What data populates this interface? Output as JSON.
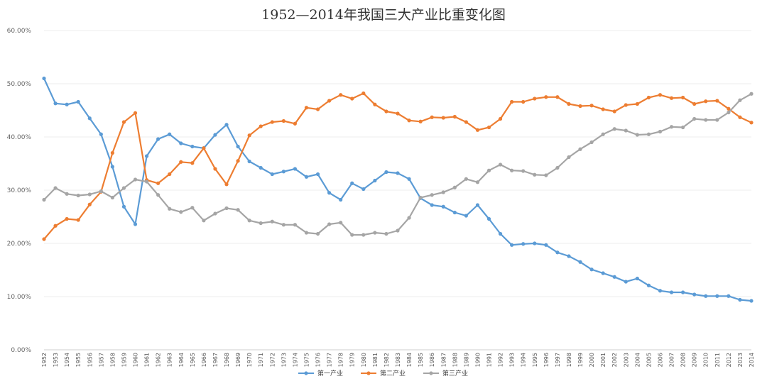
{
  "chart_data": {
    "type": "line",
    "title": "1952—2014年我国三大产业比重变化图",
    "ylim": [
      0,
      60
    ],
    "yticks": [
      "0.00%",
      "10.00%",
      "20.00%",
      "30.00%",
      "40.00%",
      "50.00%",
      "60.00%"
    ],
    "x": [
      "1952",
      "1953",
      "1954",
      "1955",
      "1956",
      "1957",
      "1958",
      "1959",
      "1960",
      "1961",
      "1962",
      "1963",
      "1964",
      "1965",
      "1966",
      "1967",
      "1968",
      "1969",
      "1970",
      "1971",
      "1972",
      "1973",
      "1974",
      "1975",
      "1976",
      "1977",
      "1978",
      "1979",
      "1980",
      "1981",
      "1982",
      "1983",
      "1984",
      "1985",
      "1986",
      "1987",
      "1988",
      "1989",
      "1990",
      "1991",
      "1992",
      "1993",
      "1994",
      "1995",
      "1996",
      "1997",
      "1998",
      "1999",
      "2000",
      "2001",
      "2002",
      "2003",
      "2004",
      "2005",
      "2006",
      "2007",
      "2008",
      "2009",
      "2010",
      "2011",
      "2012",
      "2013",
      "2014"
    ],
    "legend_position": "bottom",
    "grid": true,
    "series": [
      {
        "name": "第一产业",
        "color": "#5b9bd5",
        "values": [
          51.0,
          46.3,
          46.1,
          46.6,
          43.5,
          40.5,
          34.4,
          26.9,
          23.6,
          36.4,
          39.6,
          40.5,
          38.8,
          38.2,
          37.9,
          40.4,
          42.3,
          38.2,
          35.4,
          34.2,
          33.0,
          33.5,
          34.0,
          32.5,
          33.0,
          29.5,
          28.2,
          31.3,
          30.2,
          31.8,
          33.4,
          33.2,
          32.1,
          28.5,
          27.2,
          26.9,
          25.8,
          25.2,
          27.2,
          24.6,
          21.8,
          19.7,
          19.9,
          20.0,
          19.7,
          18.3,
          17.6,
          16.5,
          15.1,
          14.4,
          13.7,
          12.8,
          13.4,
          12.1,
          11.1,
          10.8,
          10.8,
          10.4,
          10.1,
          10.1,
          10.1,
          9.4,
          9.2
        ]
      },
      {
        "name": "第二产业",
        "color": "#ed7d31",
        "values": [
          20.8,
          23.3,
          24.6,
          24.4,
          27.3,
          29.7,
          37.0,
          42.8,
          44.5,
          31.9,
          31.3,
          33.0,
          35.3,
          35.1,
          37.9,
          34.0,
          31.1,
          35.5,
          40.3,
          42.0,
          42.8,
          43.0,
          42.5,
          45.5,
          45.2,
          46.8,
          47.9,
          47.2,
          48.2,
          46.1,
          44.8,
          44.4,
          43.1,
          42.9,
          43.7,
          43.6,
          43.8,
          42.8,
          41.3,
          41.8,
          43.4,
          46.6,
          46.6,
          47.2,
          47.5,
          47.5,
          46.2,
          45.8,
          45.9,
          45.2,
          44.8,
          46.0,
          46.2,
          47.4,
          47.9,
          47.3,
          47.4,
          46.2,
          46.7,
          46.8,
          45.3,
          43.7,
          42.7
        ]
      },
      {
        "name": "第三产业",
        "color": "#a5a5a5",
        "values": [
          28.2,
          30.4,
          29.3,
          29.0,
          29.2,
          29.8,
          28.6,
          30.4,
          32.0,
          31.6,
          29.1,
          26.5,
          25.9,
          26.7,
          24.3,
          25.6,
          26.6,
          26.3,
          24.3,
          23.8,
          24.1,
          23.5,
          23.5,
          22.0,
          21.8,
          23.6,
          23.9,
          21.6,
          21.6,
          22.0,
          21.8,
          22.4,
          24.8,
          28.6,
          29.1,
          29.6,
          30.5,
          32.1,
          31.5,
          33.7,
          34.8,
          33.7,
          33.6,
          32.9,
          32.8,
          34.2,
          36.2,
          37.7,
          39.0,
          40.5,
          41.5,
          41.2,
          40.4,
          40.5,
          41.0,
          41.9,
          41.8,
          43.4,
          43.2,
          43.2,
          44.6,
          46.9,
          48.1
        ]
      }
    ]
  }
}
